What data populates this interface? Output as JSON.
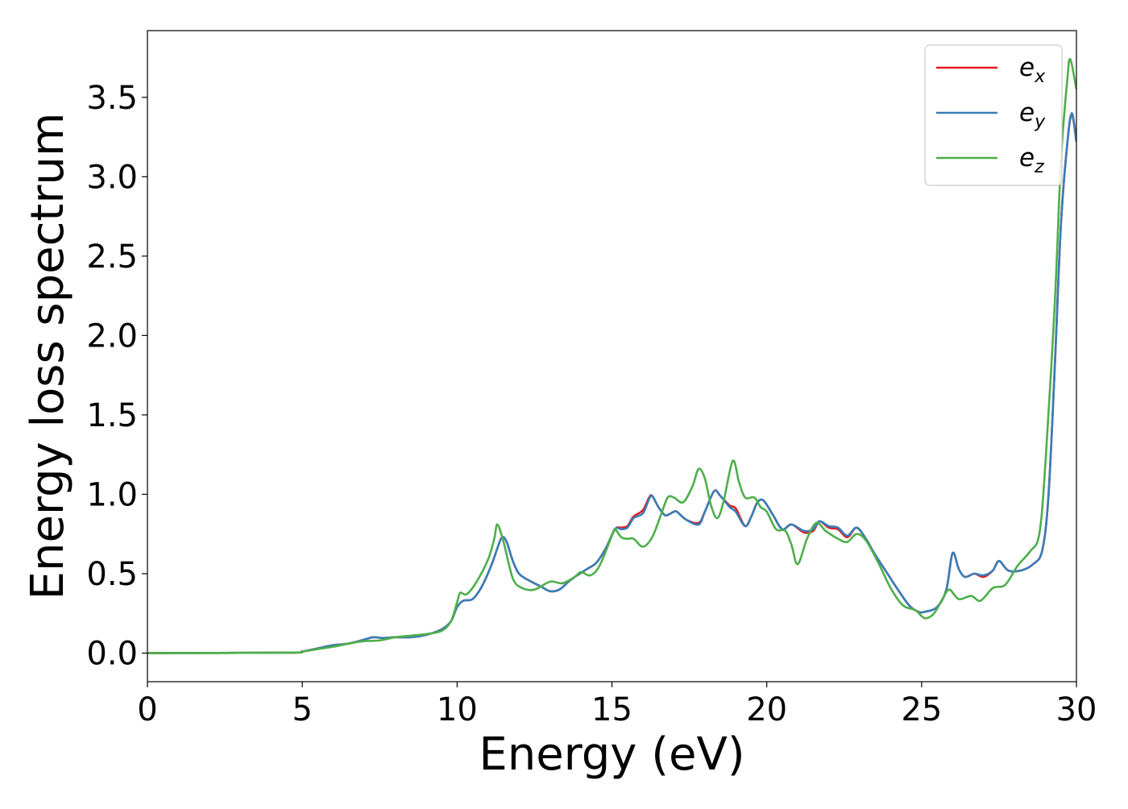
{
  "chart_data": {
    "type": "line",
    "title": "",
    "xlabel": "Energy (eV)",
    "ylabel": "Energy loss spectrum",
    "xlim": [
      0,
      30
    ],
    "ylim": [
      -0.18,
      3.92
    ],
    "xticks": [
      0,
      5,
      10,
      15,
      20,
      25,
      30
    ],
    "xtick_labels": [
      "0",
      "5",
      "10",
      "15",
      "20",
      "25",
      "30"
    ],
    "yticks": [
      0.0,
      0.5,
      1.0,
      1.5,
      2.0,
      2.5,
      3.0,
      3.5
    ],
    "ytick_labels": [
      "0.0",
      "0.5",
      "1.0",
      "1.5",
      "2.0",
      "2.5",
      "3.0",
      "3.5"
    ],
    "grid": false,
    "legend": {
      "position": "top-right",
      "entries": [
        {
          "base": "e",
          "sub": "x",
          "series": "ex"
        },
        {
          "base": "e",
          "sub": "y",
          "series": "ey"
        },
        {
          "base": "e",
          "sub": "z",
          "series": "ez"
        }
      ]
    },
    "series": [
      {
        "id": "ex",
        "color": "#e41a1c",
        "points": [
          [
            0,
            0.0
          ],
          [
            4.5,
            0.003
          ],
          [
            5.0,
            0.01
          ],
          [
            5.5,
            0.03
          ],
          [
            6.0,
            0.05
          ],
          [
            6.5,
            0.06
          ],
          [
            7.0,
            0.085
          ],
          [
            7.3,
            0.1
          ],
          [
            7.6,
            0.095
          ],
          [
            8.0,
            0.1
          ],
          [
            8.5,
            0.1
          ],
          [
            9.0,
            0.115
          ],
          [
            9.5,
            0.15
          ],
          [
            9.8,
            0.2
          ],
          [
            10.0,
            0.29
          ],
          [
            10.2,
            0.33
          ],
          [
            10.5,
            0.34
          ],
          [
            10.8,
            0.42
          ],
          [
            11.1,
            0.55
          ],
          [
            11.3,
            0.66
          ],
          [
            11.45,
            0.73
          ],
          [
            11.6,
            0.7
          ],
          [
            11.8,
            0.58
          ],
          [
            12.0,
            0.5
          ],
          [
            12.3,
            0.46
          ],
          [
            12.7,
            0.42
          ],
          [
            13.0,
            0.39
          ],
          [
            13.3,
            0.4
          ],
          [
            13.6,
            0.45
          ],
          [
            13.8,
            0.48
          ],
          [
            14.2,
            0.53
          ],
          [
            14.5,
            0.57
          ],
          [
            14.8,
            0.66
          ],
          [
            15.1,
            0.78
          ],
          [
            15.3,
            0.79
          ],
          [
            15.5,
            0.8
          ],
          [
            15.7,
            0.86
          ],
          [
            16.0,
            0.9
          ],
          [
            16.2,
            0.98
          ],
          [
            16.3,
            0.99
          ],
          [
            16.5,
            0.92
          ],
          [
            16.7,
            0.87
          ],
          [
            16.8,
            0.87
          ],
          [
            17.0,
            0.89
          ],
          [
            17.1,
            0.89
          ],
          [
            17.4,
            0.84
          ],
          [
            17.8,
            0.82
          ],
          [
            18.0,
            0.89
          ],
          [
            18.3,
            1.02
          ],
          [
            18.5,
            0.99
          ],
          [
            18.8,
            0.93
          ],
          [
            19.0,
            0.91
          ],
          [
            19.3,
            0.8
          ],
          [
            19.5,
            0.86
          ],
          [
            19.7,
            0.95
          ],
          [
            19.9,
            0.96
          ],
          [
            20.2,
            0.87
          ],
          [
            20.5,
            0.78
          ],
          [
            20.8,
            0.81
          ],
          [
            21.2,
            0.76
          ],
          [
            21.5,
            0.77
          ],
          [
            21.7,
            0.83
          ],
          [
            22.0,
            0.79
          ],
          [
            22.3,
            0.78
          ],
          [
            22.6,
            0.73
          ],
          [
            22.9,
            0.79
          ],
          [
            23.2,
            0.72
          ],
          [
            23.5,
            0.62
          ],
          [
            23.9,
            0.5
          ],
          [
            24.2,
            0.41
          ],
          [
            24.6,
            0.3
          ],
          [
            24.9,
            0.26
          ],
          [
            25.1,
            0.26
          ],
          [
            25.5,
            0.29
          ],
          [
            25.8,
            0.4
          ],
          [
            26.0,
            0.63
          ],
          [
            26.2,
            0.53
          ],
          [
            26.4,
            0.48
          ],
          [
            26.7,
            0.5
          ],
          [
            27.0,
            0.48
          ],
          [
            27.3,
            0.52
          ],
          [
            27.5,
            0.58
          ],
          [
            27.8,
            0.52
          ],
          [
            28.2,
            0.52
          ],
          [
            28.6,
            0.56
          ],
          [
            28.9,
            0.65
          ],
          [
            29.1,
            1.0
          ],
          [
            29.3,
            1.8
          ],
          [
            29.5,
            2.7
          ],
          [
            29.7,
            3.2
          ],
          [
            29.85,
            3.39
          ],
          [
            30.0,
            3.22
          ]
        ]
      },
      {
        "id": "ey",
        "color": "#377eb8",
        "points": [
          [
            0,
            0.0
          ],
          [
            4.5,
            0.003
          ],
          [
            5.0,
            0.01
          ],
          [
            5.5,
            0.03
          ],
          [
            6.0,
            0.05
          ],
          [
            6.5,
            0.06
          ],
          [
            7.0,
            0.085
          ],
          [
            7.3,
            0.1
          ],
          [
            7.6,
            0.095
          ],
          [
            8.0,
            0.1
          ],
          [
            8.5,
            0.1
          ],
          [
            9.0,
            0.115
          ],
          [
            9.5,
            0.15
          ],
          [
            9.8,
            0.2
          ],
          [
            10.0,
            0.29
          ],
          [
            10.2,
            0.33
          ],
          [
            10.5,
            0.34
          ],
          [
            10.8,
            0.42
          ],
          [
            11.1,
            0.55
          ],
          [
            11.3,
            0.66
          ],
          [
            11.45,
            0.73
          ],
          [
            11.6,
            0.7
          ],
          [
            11.8,
            0.58
          ],
          [
            12.0,
            0.5
          ],
          [
            12.3,
            0.46
          ],
          [
            12.7,
            0.42
          ],
          [
            13.0,
            0.39
          ],
          [
            13.3,
            0.4
          ],
          [
            13.6,
            0.45
          ],
          [
            13.8,
            0.48
          ],
          [
            14.2,
            0.53
          ],
          [
            14.5,
            0.57
          ],
          [
            14.8,
            0.66
          ],
          [
            15.1,
            0.78
          ],
          [
            15.3,
            0.78
          ],
          [
            15.5,
            0.79
          ],
          [
            15.7,
            0.85
          ],
          [
            16.0,
            0.88
          ],
          [
            16.2,
            0.97
          ],
          [
            16.3,
            0.99
          ],
          [
            16.5,
            0.92
          ],
          [
            16.7,
            0.87
          ],
          [
            16.8,
            0.87
          ],
          [
            17.0,
            0.89
          ],
          [
            17.1,
            0.89
          ],
          [
            17.4,
            0.84
          ],
          [
            17.8,
            0.81
          ],
          [
            18.0,
            0.89
          ],
          [
            18.3,
            1.02
          ],
          [
            18.5,
            0.99
          ],
          [
            18.8,
            0.92
          ],
          [
            19.0,
            0.89
          ],
          [
            19.3,
            0.8
          ],
          [
            19.5,
            0.86
          ],
          [
            19.7,
            0.95
          ],
          [
            19.9,
            0.96
          ],
          [
            20.2,
            0.87
          ],
          [
            20.5,
            0.78
          ],
          [
            20.8,
            0.81
          ],
          [
            21.2,
            0.77
          ],
          [
            21.5,
            0.78
          ],
          [
            21.7,
            0.83
          ],
          [
            22.0,
            0.8
          ],
          [
            22.3,
            0.79
          ],
          [
            22.6,
            0.74
          ],
          [
            22.9,
            0.79
          ],
          [
            23.2,
            0.72
          ],
          [
            23.5,
            0.62
          ],
          [
            23.9,
            0.5
          ],
          [
            24.2,
            0.41
          ],
          [
            24.6,
            0.3
          ],
          [
            24.9,
            0.26
          ],
          [
            25.1,
            0.26
          ],
          [
            25.5,
            0.29
          ],
          [
            25.8,
            0.4
          ],
          [
            26.0,
            0.63
          ],
          [
            26.2,
            0.53
          ],
          [
            26.4,
            0.48
          ],
          [
            26.7,
            0.5
          ],
          [
            27.0,
            0.49
          ],
          [
            27.3,
            0.52
          ],
          [
            27.5,
            0.58
          ],
          [
            27.8,
            0.52
          ],
          [
            28.2,
            0.52
          ],
          [
            28.6,
            0.56
          ],
          [
            28.9,
            0.65
          ],
          [
            29.1,
            1.0
          ],
          [
            29.3,
            1.8
          ],
          [
            29.5,
            2.7
          ],
          [
            29.7,
            3.2
          ],
          [
            29.85,
            3.4
          ],
          [
            30.0,
            3.22
          ]
        ]
      },
      {
        "id": "ez",
        "color": "#4daf4a",
        "points": [
          [
            0,
            0.0
          ],
          [
            4.5,
            0.003
          ],
          [
            5.0,
            0.01
          ],
          [
            5.5,
            0.025
          ],
          [
            6.0,
            0.04
          ],
          [
            6.5,
            0.06
          ],
          [
            7.0,
            0.075
          ],
          [
            7.5,
            0.08
          ],
          [
            8.0,
            0.1
          ],
          [
            8.5,
            0.11
          ],
          [
            9.0,
            0.12
          ],
          [
            9.5,
            0.14
          ],
          [
            9.8,
            0.2
          ],
          [
            10.0,
            0.32
          ],
          [
            10.1,
            0.38
          ],
          [
            10.3,
            0.37
          ],
          [
            10.6,
            0.44
          ],
          [
            11.0,
            0.59
          ],
          [
            11.2,
            0.72
          ],
          [
            11.3,
            0.81
          ],
          [
            11.5,
            0.7
          ],
          [
            11.8,
            0.47
          ],
          [
            12.1,
            0.41
          ],
          [
            12.5,
            0.4
          ],
          [
            13.0,
            0.45
          ],
          [
            13.4,
            0.44
          ],
          [
            13.8,
            0.48
          ],
          [
            14.0,
            0.51
          ],
          [
            14.3,
            0.49
          ],
          [
            14.6,
            0.55
          ],
          [
            15.0,
            0.74
          ],
          [
            15.1,
            0.78
          ],
          [
            15.3,
            0.73
          ],
          [
            15.5,
            0.72
          ],
          [
            15.7,
            0.72
          ],
          [
            16.0,
            0.67
          ],
          [
            16.3,
            0.73
          ],
          [
            16.6,
            0.88
          ],
          [
            16.8,
            0.98
          ],
          [
            17.0,
            0.98
          ],
          [
            17.3,
            0.95
          ],
          [
            17.6,
            1.05
          ],
          [
            17.8,
            1.16
          ],
          [
            18.0,
            1.1
          ],
          [
            18.2,
            0.93
          ],
          [
            18.4,
            0.85
          ],
          [
            18.6,
            0.95
          ],
          [
            18.9,
            1.21
          ],
          [
            19.1,
            1.08
          ],
          [
            19.3,
            0.98
          ],
          [
            19.6,
            0.98
          ],
          [
            19.8,
            0.92
          ],
          [
            20.0,
            0.89
          ],
          [
            20.3,
            0.78
          ],
          [
            20.6,
            0.77
          ],
          [
            20.8,
            0.68
          ],
          [
            21.0,
            0.56
          ],
          [
            21.3,
            0.72
          ],
          [
            21.6,
            0.82
          ],
          [
            21.9,
            0.77
          ],
          [
            22.3,
            0.72
          ],
          [
            22.6,
            0.7
          ],
          [
            22.9,
            0.75
          ],
          [
            23.2,
            0.71
          ],
          [
            23.6,
            0.57
          ],
          [
            24.0,
            0.41
          ],
          [
            24.4,
            0.3
          ],
          [
            24.8,
            0.27
          ],
          [
            25.1,
            0.22
          ],
          [
            25.4,
            0.25
          ],
          [
            25.7,
            0.35
          ],
          [
            25.9,
            0.4
          ],
          [
            26.2,
            0.34
          ],
          [
            26.6,
            0.36
          ],
          [
            26.9,
            0.33
          ],
          [
            27.3,
            0.41
          ],
          [
            27.7,
            0.43
          ],
          [
            28.1,
            0.55
          ],
          [
            28.5,
            0.64
          ],
          [
            28.8,
            0.75
          ],
          [
            29.0,
            1.2
          ],
          [
            29.3,
            2.2
          ],
          [
            29.5,
            3.1
          ],
          [
            29.7,
            3.6
          ],
          [
            29.8,
            3.74
          ],
          [
            30.0,
            3.55
          ]
        ]
      }
    ]
  }
}
